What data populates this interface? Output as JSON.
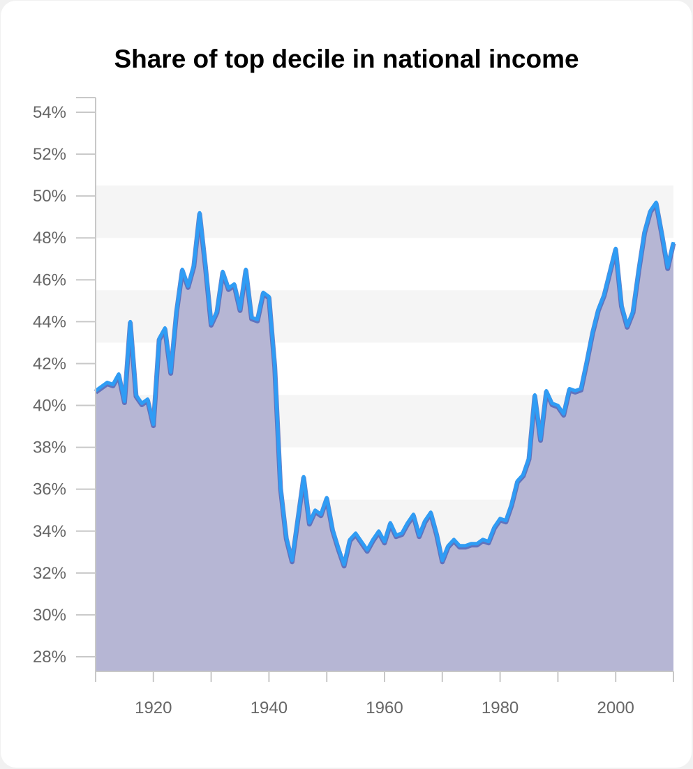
{
  "chart_data": {
    "type": "area",
    "title": "Share of top decile in national income",
    "xlabel": "",
    "ylabel": "",
    "xlim": [
      1910,
      2010
    ],
    "ylim": [
      27.3,
      54.7
    ],
    "x_ticks": [
      1920,
      1940,
      1960,
      1980,
      2000
    ],
    "y_ticks": [
      28,
      30,
      32,
      34,
      36,
      38,
      40,
      42,
      44,
      46,
      48,
      50,
      52,
      54
    ],
    "y_tick_labels": [
      "28%",
      "30%",
      "32%",
      "34%",
      "36%",
      "38%",
      "40%",
      "42%",
      "44%",
      "46%",
      "48%",
      "50%",
      "52%",
      "54%"
    ],
    "x_tick_labels": [
      "1920",
      "1940",
      "1960",
      "1980",
      "2000"
    ],
    "grid": "alternating horizontal bands",
    "legend": "none",
    "colors": {
      "line": "#2f9cf4",
      "line_shadow": "#4a63b8",
      "fill": "#b6b6d4",
      "band": "#f5f5f5"
    },
    "series": [
      {
        "x": [
          1910,
          1911,
          1912,
          1913,
          1914,
          1915,
          1916,
          1917,
          1918,
          1919,
          1920,
          1921,
          1922,
          1923,
          1924,
          1925,
          1926,
          1927,
          1928,
          1929,
          1930,
          1931,
          1932,
          1933,
          1934,
          1935,
          1936,
          1937,
          1938,
          1939,
          1940,
          1941,
          1942,
          1943,
          1944,
          1945,
          1946,
          1947,
          1948,
          1949,
          1950,
          1951,
          1952,
          1953,
          1954,
          1955,
          1956,
          1957,
          1958,
          1959,
          1960,
          1961,
          1962,
          1963,
          1964,
          1965,
          1966,
          1967,
          1968,
          1969,
          1970,
          1971,
          1972,
          1973,
          1974,
          1975,
          1976,
          1977,
          1978,
          1979,
          1980,
          1981,
          1982,
          1983,
          1984,
          1985,
          1986,
          1987,
          1988,
          1989,
          1990,
          1991,
          1992,
          1993,
          1994,
          1995,
          1996,
          1997,
          1998,
          1999,
          2000,
          2001,
          2002,
          2003,
          2004,
          2005,
          2006,
          2007,
          2008,
          2009,
          2010
        ],
        "values": [
          40.7,
          40.9,
          41.1,
          41.0,
          41.5,
          40.2,
          44.0,
          40.5,
          40.1,
          40.3,
          39.1,
          43.2,
          43.7,
          41.6,
          44.5,
          46.5,
          45.7,
          46.7,
          49.2,
          46.7,
          43.9,
          44.5,
          46.4,
          45.6,
          45.8,
          44.6,
          46.5,
          44.2,
          44.1,
          45.4,
          45.2,
          41.9,
          36.1,
          33.7,
          32.6,
          34.6,
          36.6,
          34.4,
          35.0,
          34.8,
          35.6,
          34.1,
          33.2,
          32.4,
          33.6,
          33.9,
          33.5,
          33.1,
          33.6,
          34.0,
          33.5,
          34.4,
          33.8,
          33.9,
          34.4,
          34.8,
          33.8,
          34.5,
          34.9,
          33.9,
          32.6,
          33.3,
          33.6,
          33.3,
          33.3,
          33.4,
          33.4,
          33.6,
          33.5,
          34.2,
          34.6,
          34.5,
          35.3,
          36.4,
          36.7,
          37.5,
          40.5,
          38.4,
          40.7,
          40.1,
          40.0,
          39.6,
          40.8,
          40.7,
          40.8,
          42.1,
          43.5,
          44.6,
          45.3,
          46.4,
          47.5,
          44.8,
          43.8,
          44.5,
          46.5,
          48.3,
          49.3,
          49.7,
          48.2,
          46.6,
          47.8
        ]
      }
    ]
  }
}
